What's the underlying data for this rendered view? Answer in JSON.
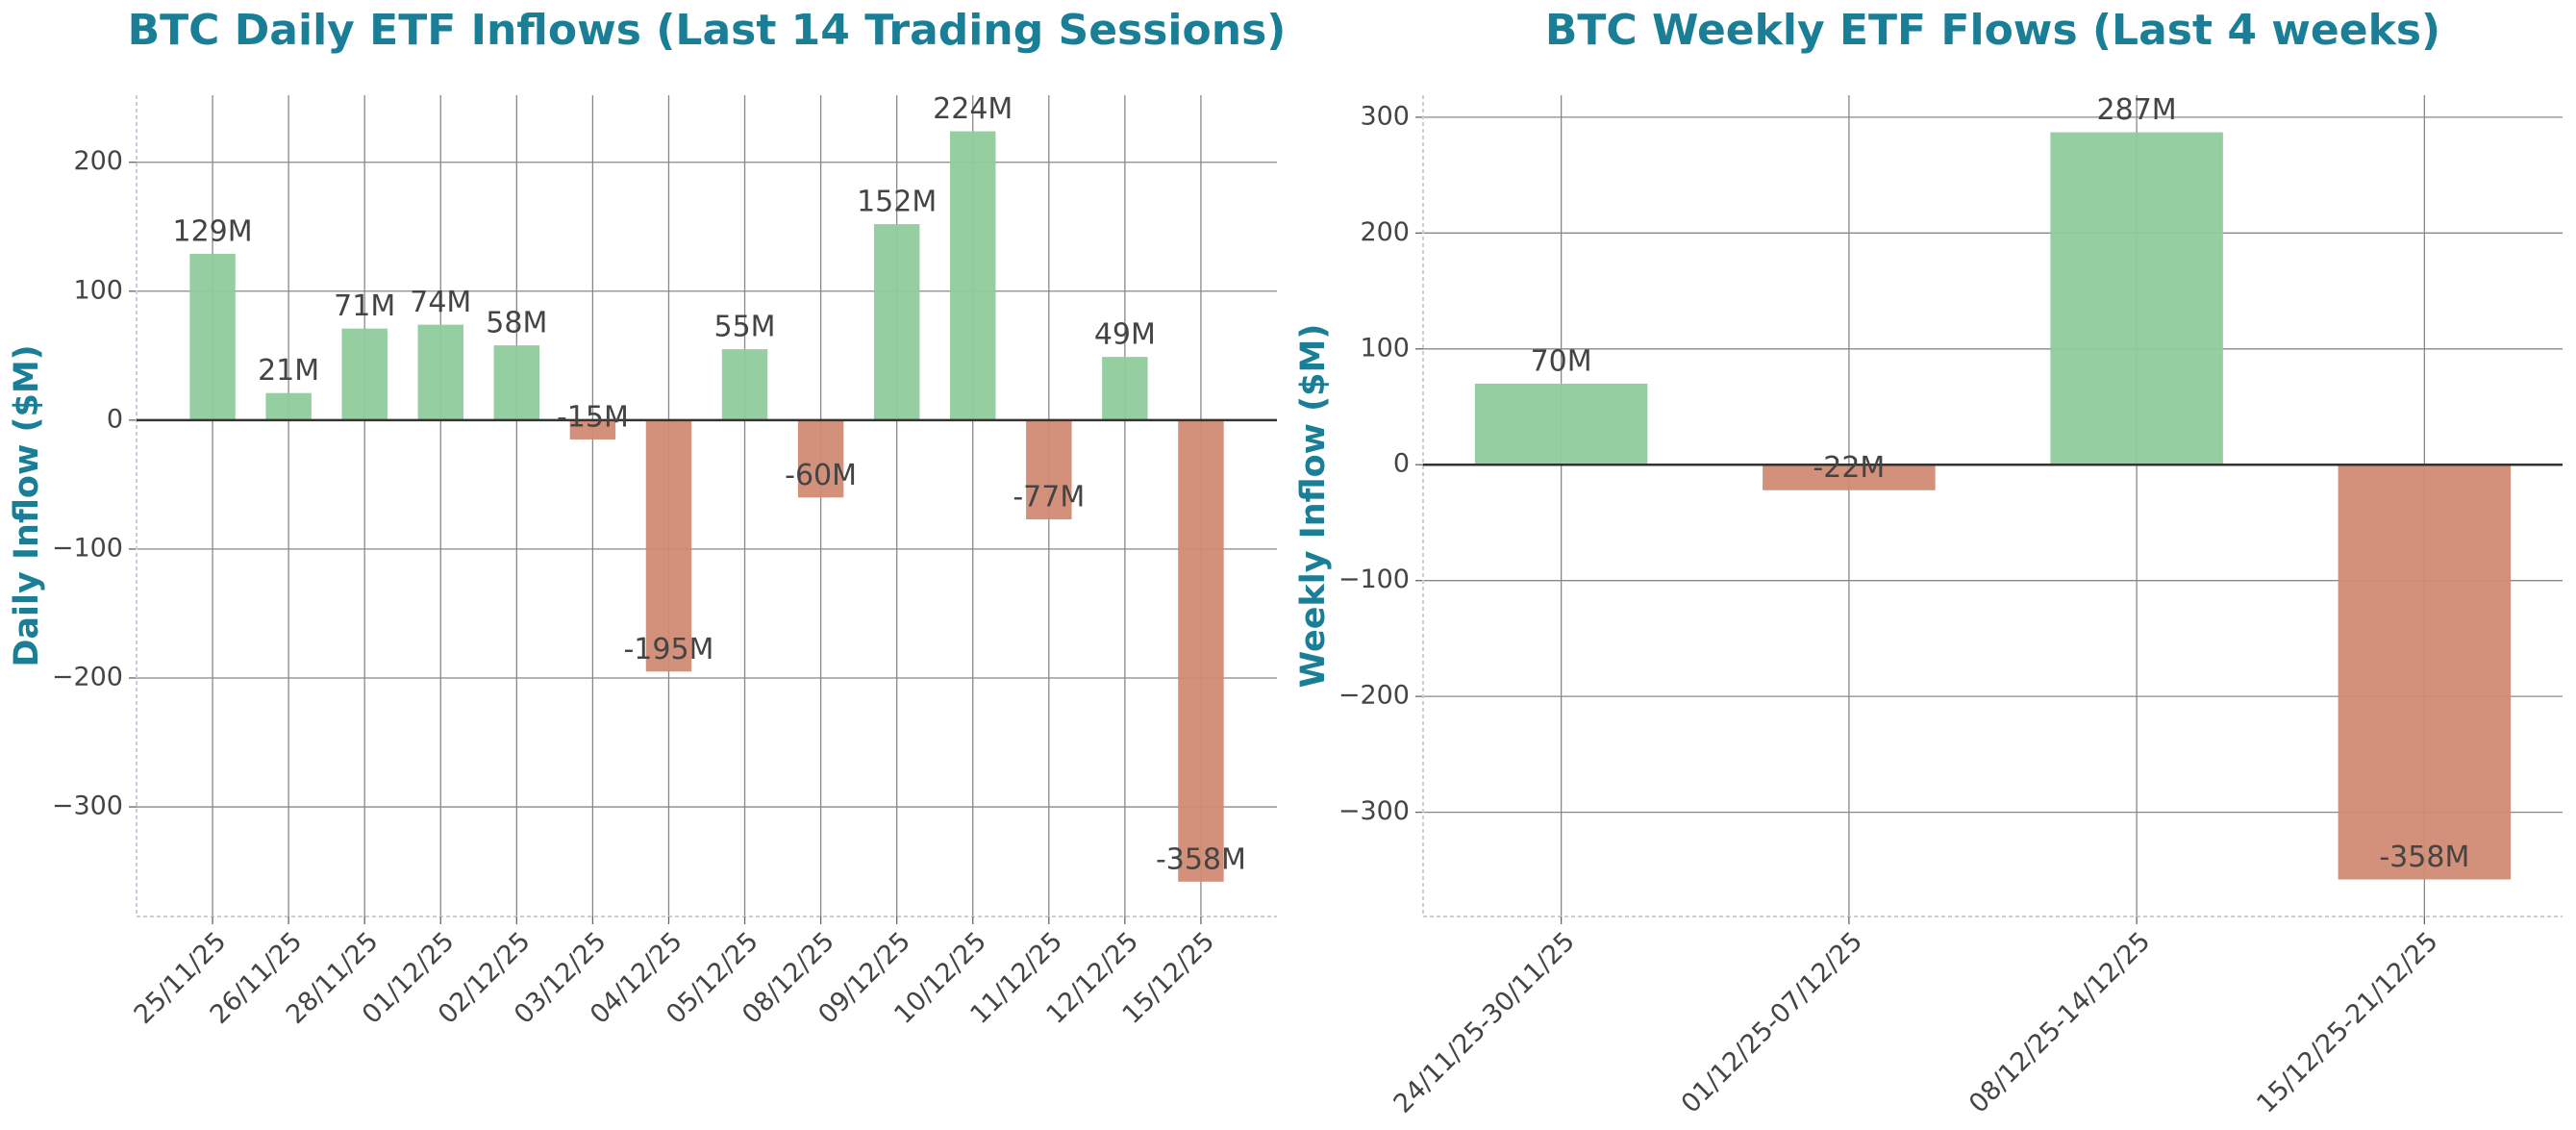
{
  "chart_data": [
    {
      "type": "bar",
      "title": "BTC Daily ETF Inflows (Last 14 Trading Sessions)",
      "y_label": "Daily Inflow ($M)",
      "categories": [
        "25/11/25",
        "26/11/25",
        "28/11/25",
        "01/12/25",
        "02/12/25",
        "03/12/25",
        "04/12/25",
        "05/12/25",
        "08/12/25",
        "09/12/25",
        "10/12/25",
        "11/12/25",
        "12/12/25",
        "15/12/25"
      ],
      "values": [
        129,
        21,
        71,
        74,
        58,
        -15,
        -195,
        55,
        -60,
        152,
        224,
        -77,
        49,
        -358
      ],
      "value_labels": [
        "129M",
        "21M",
        "71M",
        "74M",
        "58M",
        "-15M",
        "-195M",
        "55M",
        "-60M",
        "152M",
        "224M",
        "-77M",
        "49M",
        "-358M"
      ],
      "positive_color": "#8fcc9c",
      "negative_color": "#d18a73",
      "ylim": [
        -385,
        252
      ],
      "yticks": [
        {
          "value": -300,
          "label": "−300"
        },
        {
          "value": -200,
          "label": "−200"
        },
        {
          "value": -100,
          "label": "−100"
        },
        0,
        100,
        200
      ],
      "grid": true
    },
    {
      "type": "bar",
      "title": "BTC Weekly ETF Flows (Last 4 weeks)",
      "y_label": "Weekly Inflow ($M)",
      "categories": [
        "24/11/25-30/11/25",
        "01/12/25-07/12/25",
        "08/12/25-14/12/25",
        "15/12/25-21/12/25"
      ],
      "values": [
        70,
        -22,
        287,
        -358
      ],
      "value_labels": [
        "70M",
        "-22M",
        "287M",
        "-358M"
      ],
      "positive_color": "#8fcc9c",
      "negative_color": "#d18a73",
      "ylim": [
        -390,
        319
      ],
      "yticks": [
        {
          "value": -300,
          "label": "−300"
        },
        {
          "value": -200,
          "label": "−200"
        },
        {
          "value": -100,
          "label": "−100"
        },
        0,
        100,
        200,
        300
      ],
      "grid": true
    }
  ]
}
